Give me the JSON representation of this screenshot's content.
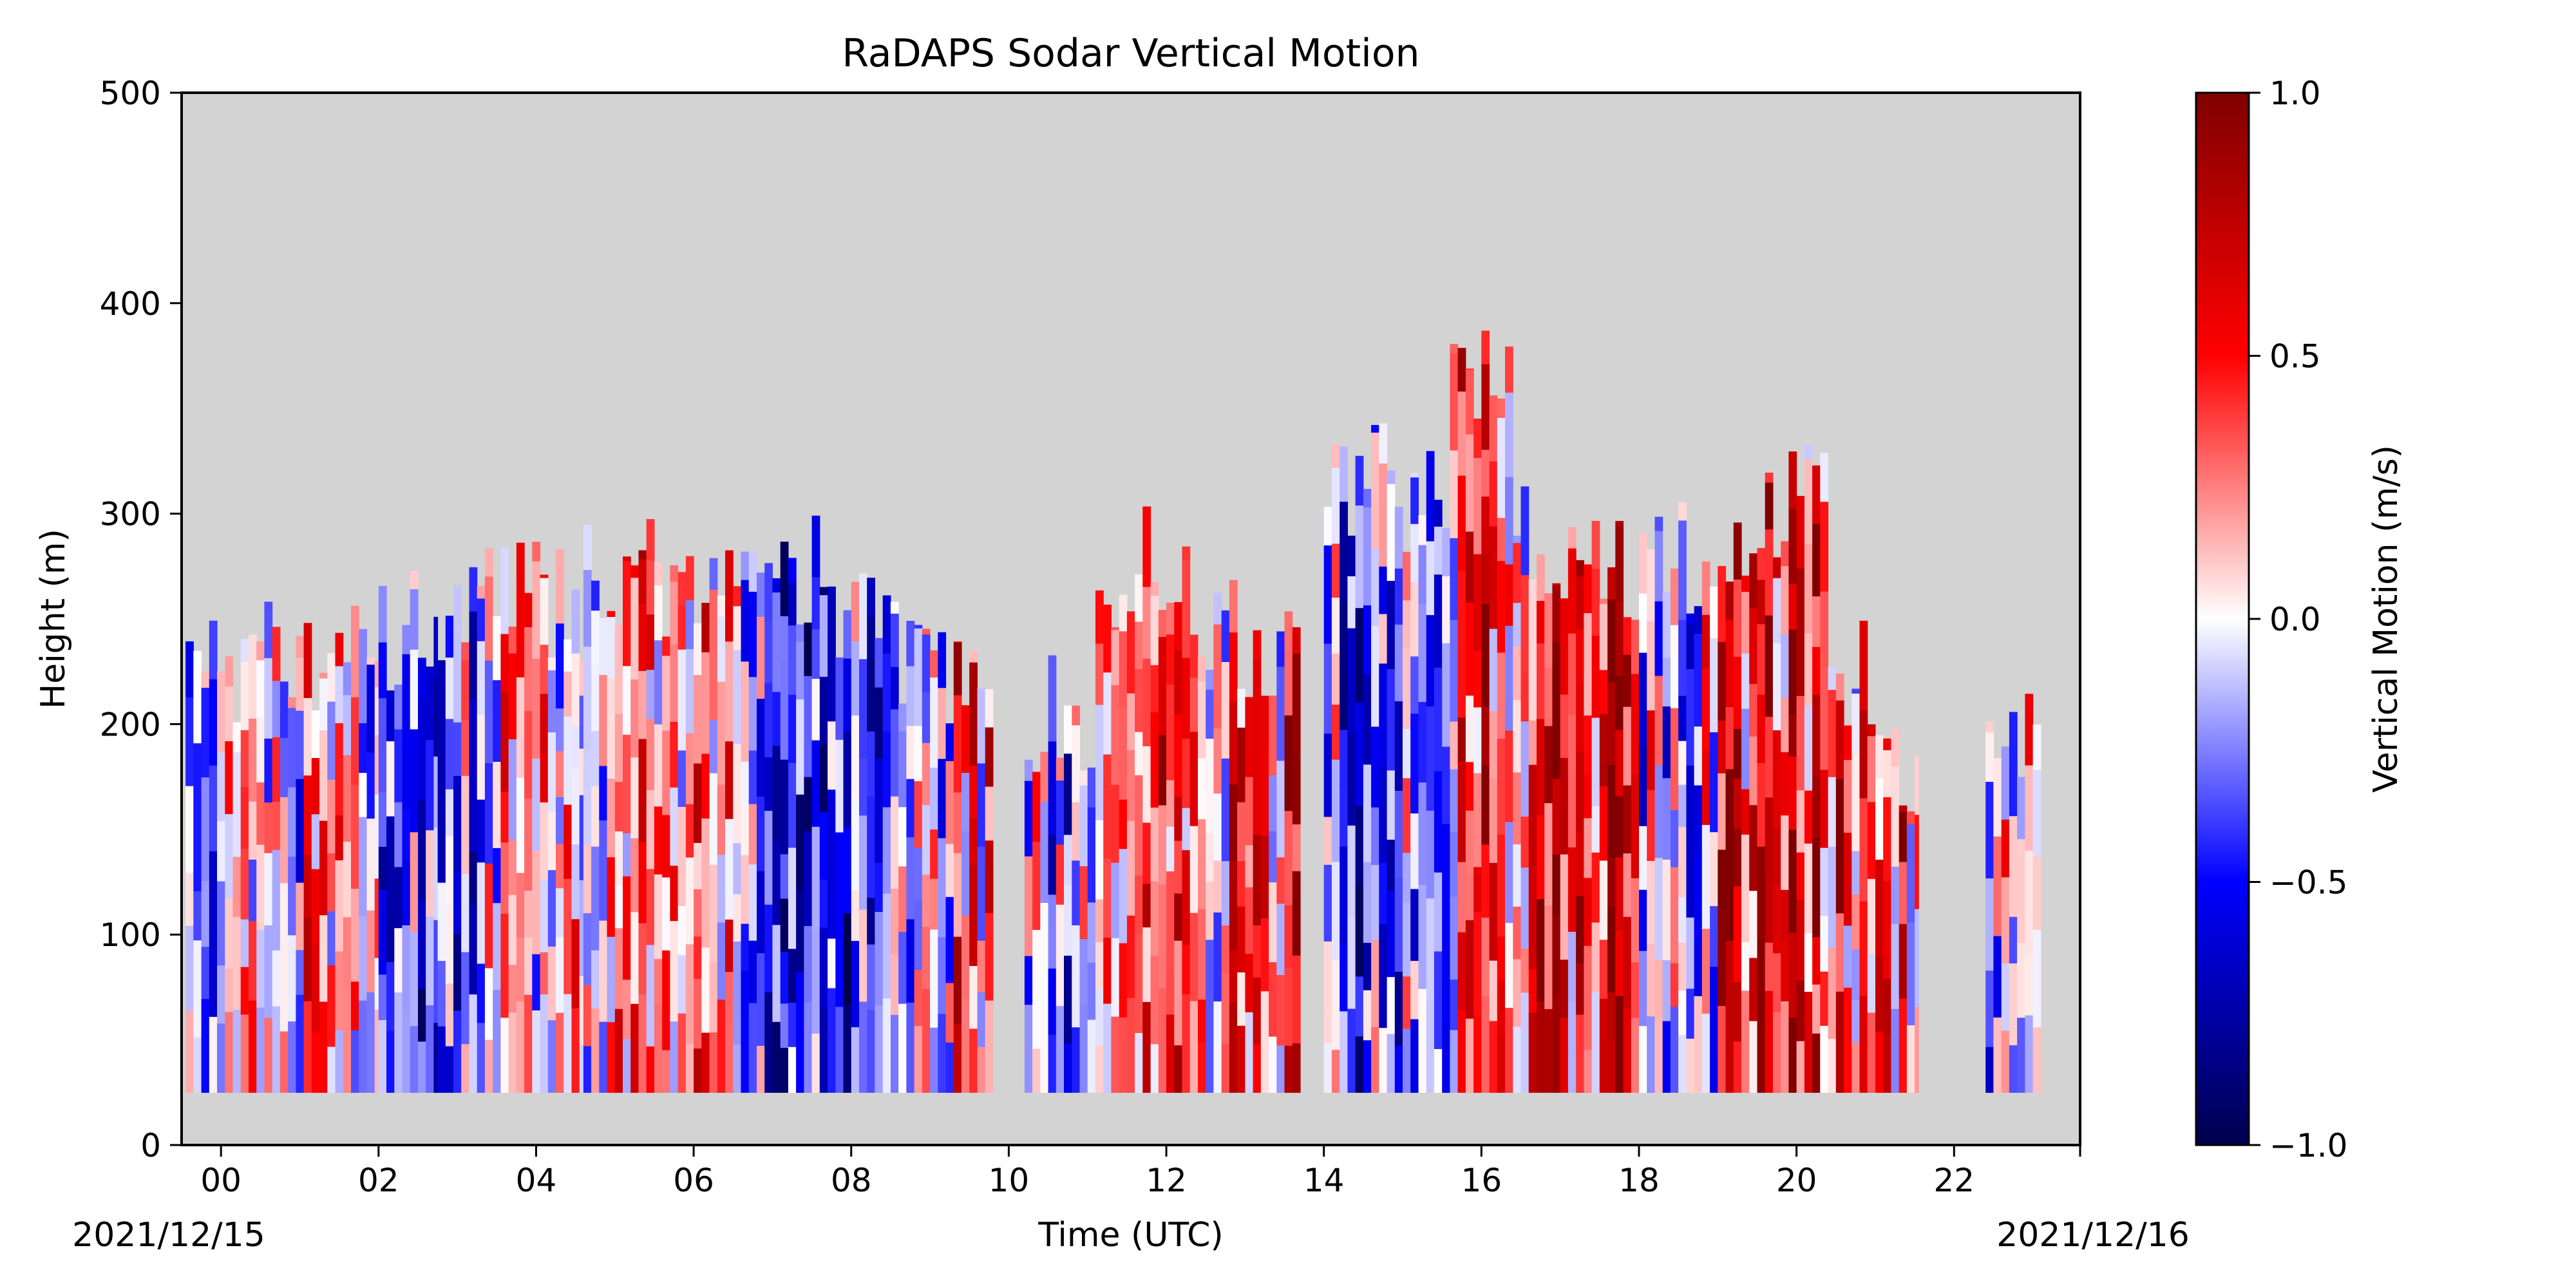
{
  "chart_data": {
    "type": "heatmap",
    "title": "RaDAPS Sodar Vertical Motion",
    "xlabel": "Time (UTC)",
    "ylabel": "Height (m)",
    "x_start_label": "2021/12/15",
    "x_end_label": "2021/12/16",
    "xlim_hours": [
      -0.5,
      23.6
    ],
    "ylim": [
      0,
      500
    ],
    "x_ticks": [
      {
        "v": 0,
        "label": "00"
      },
      {
        "v": 2,
        "label": "02"
      },
      {
        "v": 4,
        "label": "04"
      },
      {
        "v": 6,
        "label": "06"
      },
      {
        "v": 8,
        "label": "08"
      },
      {
        "v": 10,
        "label": "10"
      },
      {
        "v": 12,
        "label": "12"
      },
      {
        "v": 14,
        "label": "14"
      },
      {
        "v": 16,
        "label": "16"
      },
      {
        "v": 18,
        "label": "18"
      },
      {
        "v": 20,
        "label": "20"
      },
      {
        "v": 22,
        "label": "22"
      }
    ],
    "y_ticks": [
      {
        "v": 0,
        "label": "0"
      },
      {
        "v": 100,
        "label": "100"
      },
      {
        "v": 200,
        "label": "200"
      },
      {
        "v": 300,
        "label": "300"
      },
      {
        "v": 400,
        "label": "400"
      },
      {
        "v": 500,
        "label": "500"
      }
    ],
    "colorbar": {
      "label": "Vertical Motion (m/s)",
      "vmin": -1.0,
      "vmax": 1.0,
      "colormap": "seismic",
      "ticks": [
        {
          "v": 1.0,
          "label": "1.0"
        },
        {
          "v": 0.5,
          "label": "0.5"
        },
        {
          "v": 0.0,
          "label": "0.0"
        },
        {
          "v": -0.5,
          "label": "−0.5"
        },
        {
          "v": -1.0,
          "label": "−1.0"
        }
      ]
    },
    "background_color": "#d3d3d3",
    "data_bottom_m": 25,
    "segments": [
      {
        "start": -0.45,
        "end": 0.75,
        "top": 230
      },
      {
        "start": 0.75,
        "end": 1.25,
        "top": 235
      },
      {
        "start": 1.25,
        "end": 2.0,
        "top": 235
      },
      {
        "start": 2.0,
        "end": 2.75,
        "top": 245
      },
      {
        "start": 2.75,
        "end": 3.55,
        "top": 260
      },
      {
        "start": 3.55,
        "end": 4.6,
        "top": 260
      },
      {
        "start": 4.6,
        "end": 5.8,
        "top": 270
      },
      {
        "start": 5.8,
        "end": 6.8,
        "top": 255
      },
      {
        "start": 6.8,
        "end": 7.6,
        "top": 270
      },
      {
        "start": 7.6,
        "end": 8.6,
        "top": 255
      },
      {
        "start": 8.6,
        "end": 9.8,
        "top": 220
      },
      {
        "start": 10.2,
        "end": 11.1,
        "top": 205
      },
      {
        "start": 11.1,
        "end": 12.3,
        "top": 275
      },
      {
        "start": 12.3,
        "end": 13.7,
        "top": 240
      },
      {
        "start": 14.0,
        "end": 14.8,
        "top": 315
      },
      {
        "start": 14.8,
        "end": 15.6,
        "top": 300
      },
      {
        "start": 15.6,
        "end": 16.4,
        "top": 360
      },
      {
        "start": 16.4,
        "end": 17.2,
        "top": 285
      },
      {
        "start": 17.2,
        "end": 18.0,
        "top": 270
      },
      {
        "start": 18.0,
        "end": 18.8,
        "top": 280
      },
      {
        "start": 18.8,
        "end": 19.6,
        "top": 290
      },
      {
        "start": 19.6,
        "end": 20.4,
        "top": 305
      },
      {
        "start": 20.4,
        "end": 21.3,
        "top": 220
      },
      {
        "start": 21.3,
        "end": 21.55,
        "top": 160
      },
      {
        "start": 22.4,
        "end": 23.1,
        "top": 190
      }
    ]
  }
}
